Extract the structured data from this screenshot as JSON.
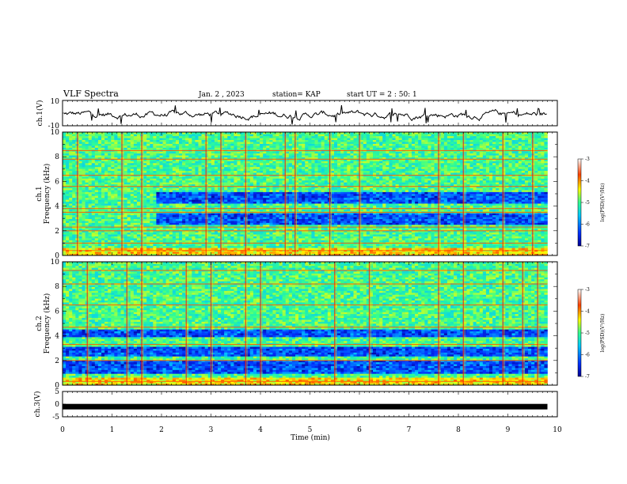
{
  "header": {
    "title": "VLF Spectra",
    "date": "Jan. 2 , 2023",
    "station": "station= KAP",
    "start": "start UT =  2 : 50: 1"
  },
  "chart_data": [
    {
      "type": "line",
      "name": "ch1-waveform",
      "ylabel": "ch.1(V)",
      "ylim": [
        -10,
        10
      ],
      "yticks": [
        "10",
        "-10"
      ],
      "xlim": [
        0,
        10
      ],
      "x_extent": 9.8,
      "trace": "noisy voltage trace between roughly -8 and 6 V",
      "color": "#000000"
    },
    {
      "type": "heatmap",
      "name": "ch1-spectrogram",
      "ylabel": "ch.1\nFrequency (kHz)",
      "ylabel_lines": [
        "ch.1",
        "Frequency (kHz)"
      ],
      "ylim": [
        0,
        10
      ],
      "yticks": [
        "0",
        "2",
        "4",
        "6",
        "8",
        "10"
      ],
      "xlim": [
        0,
        10
      ],
      "x_extent": 9.8,
      "colorbar": {
        "label": "log(PSD)(V²/Hz)",
        "range": [
          -7,
          -3
        ],
        "ticks": [
          "-3",
          "-4",
          "-5",
          "-6",
          "-7"
        ],
        "colors": [
          "#000090",
          "#0030ff",
          "#00c8ff",
          "#30ff90",
          "#ffff00",
          "#ff4000",
          "#ffffff"
        ]
      },
      "low_power_band_khz": [
        [
          2.5,
          3.5
        ],
        [
          4.2,
          5.2
        ]
      ],
      "low_power_start_min": 1.9,
      "persistent_lines_khz": [
        0.4,
        1.0,
        2.0,
        2.3,
        3.5,
        3.8,
        5.6,
        6.5,
        7.8,
        8.5
      ],
      "bursts_min": [
        0.3,
        1.2,
        1.6,
        2.9,
        3.2,
        3.7,
        4.5,
        4.7,
        5.4,
        6.0,
        7.6,
        8.1,
        8.9,
        9.5
      ]
    },
    {
      "type": "heatmap",
      "name": "ch2-spectrogram",
      "ylabel": "ch.2\nFrequency (kHz)",
      "ylabel_lines": [
        "ch.2",
        "Frequency (kHz)"
      ],
      "ylim": [
        0,
        10
      ],
      "yticks": [
        "0",
        "2",
        "4",
        "6",
        "8",
        "10"
      ],
      "xlim": [
        0,
        10
      ],
      "x_extent": 9.8,
      "colorbar": {
        "label": "log(PSD)(V²/Hz)",
        "range": [
          -7,
          -3
        ],
        "ticks": [
          "-3",
          "-4",
          "-5",
          "-6",
          "-7"
        ],
        "colors": [
          "#000090",
          "#0030ff",
          "#00c8ff",
          "#30ff90",
          "#ffff00",
          "#ff4000",
          "#ffffff"
        ]
      },
      "low_power_band_khz": [
        [
          1.0,
          2.0
        ],
        [
          2.3,
          3.2
        ],
        [
          3.9,
          4.6
        ]
      ],
      "low_power_start_min": 0,
      "persistent_lines_khz": [
        0.3,
        2.0,
        3.3,
        4.7,
        6.5,
        8.2,
        9.3
      ],
      "bursts_min": [
        0.5,
        1.3,
        1.6,
        2.5,
        3.0,
        3.7,
        4.0,
        5.5,
        6.2,
        7.6,
        8.1,
        8.9,
        9.3,
        9.6
      ]
    },
    {
      "type": "line",
      "name": "ch3-waveform",
      "ylabel": "ch.3(V)",
      "ylim": [
        -5,
        5
      ],
      "yticks": [
        "5",
        "0",
        "-5"
      ],
      "xlim": [
        0,
        10
      ],
      "x_extent": 9.8,
      "trace": "flat band near -1 V",
      "band_center": -1,
      "color": "#000000"
    }
  ],
  "x_axis": {
    "label": "Time (min)",
    "ticks": [
      "0",
      "1",
      "2",
      "3",
      "4",
      "5",
      "6",
      "7",
      "8",
      "9",
      "10"
    ]
  }
}
